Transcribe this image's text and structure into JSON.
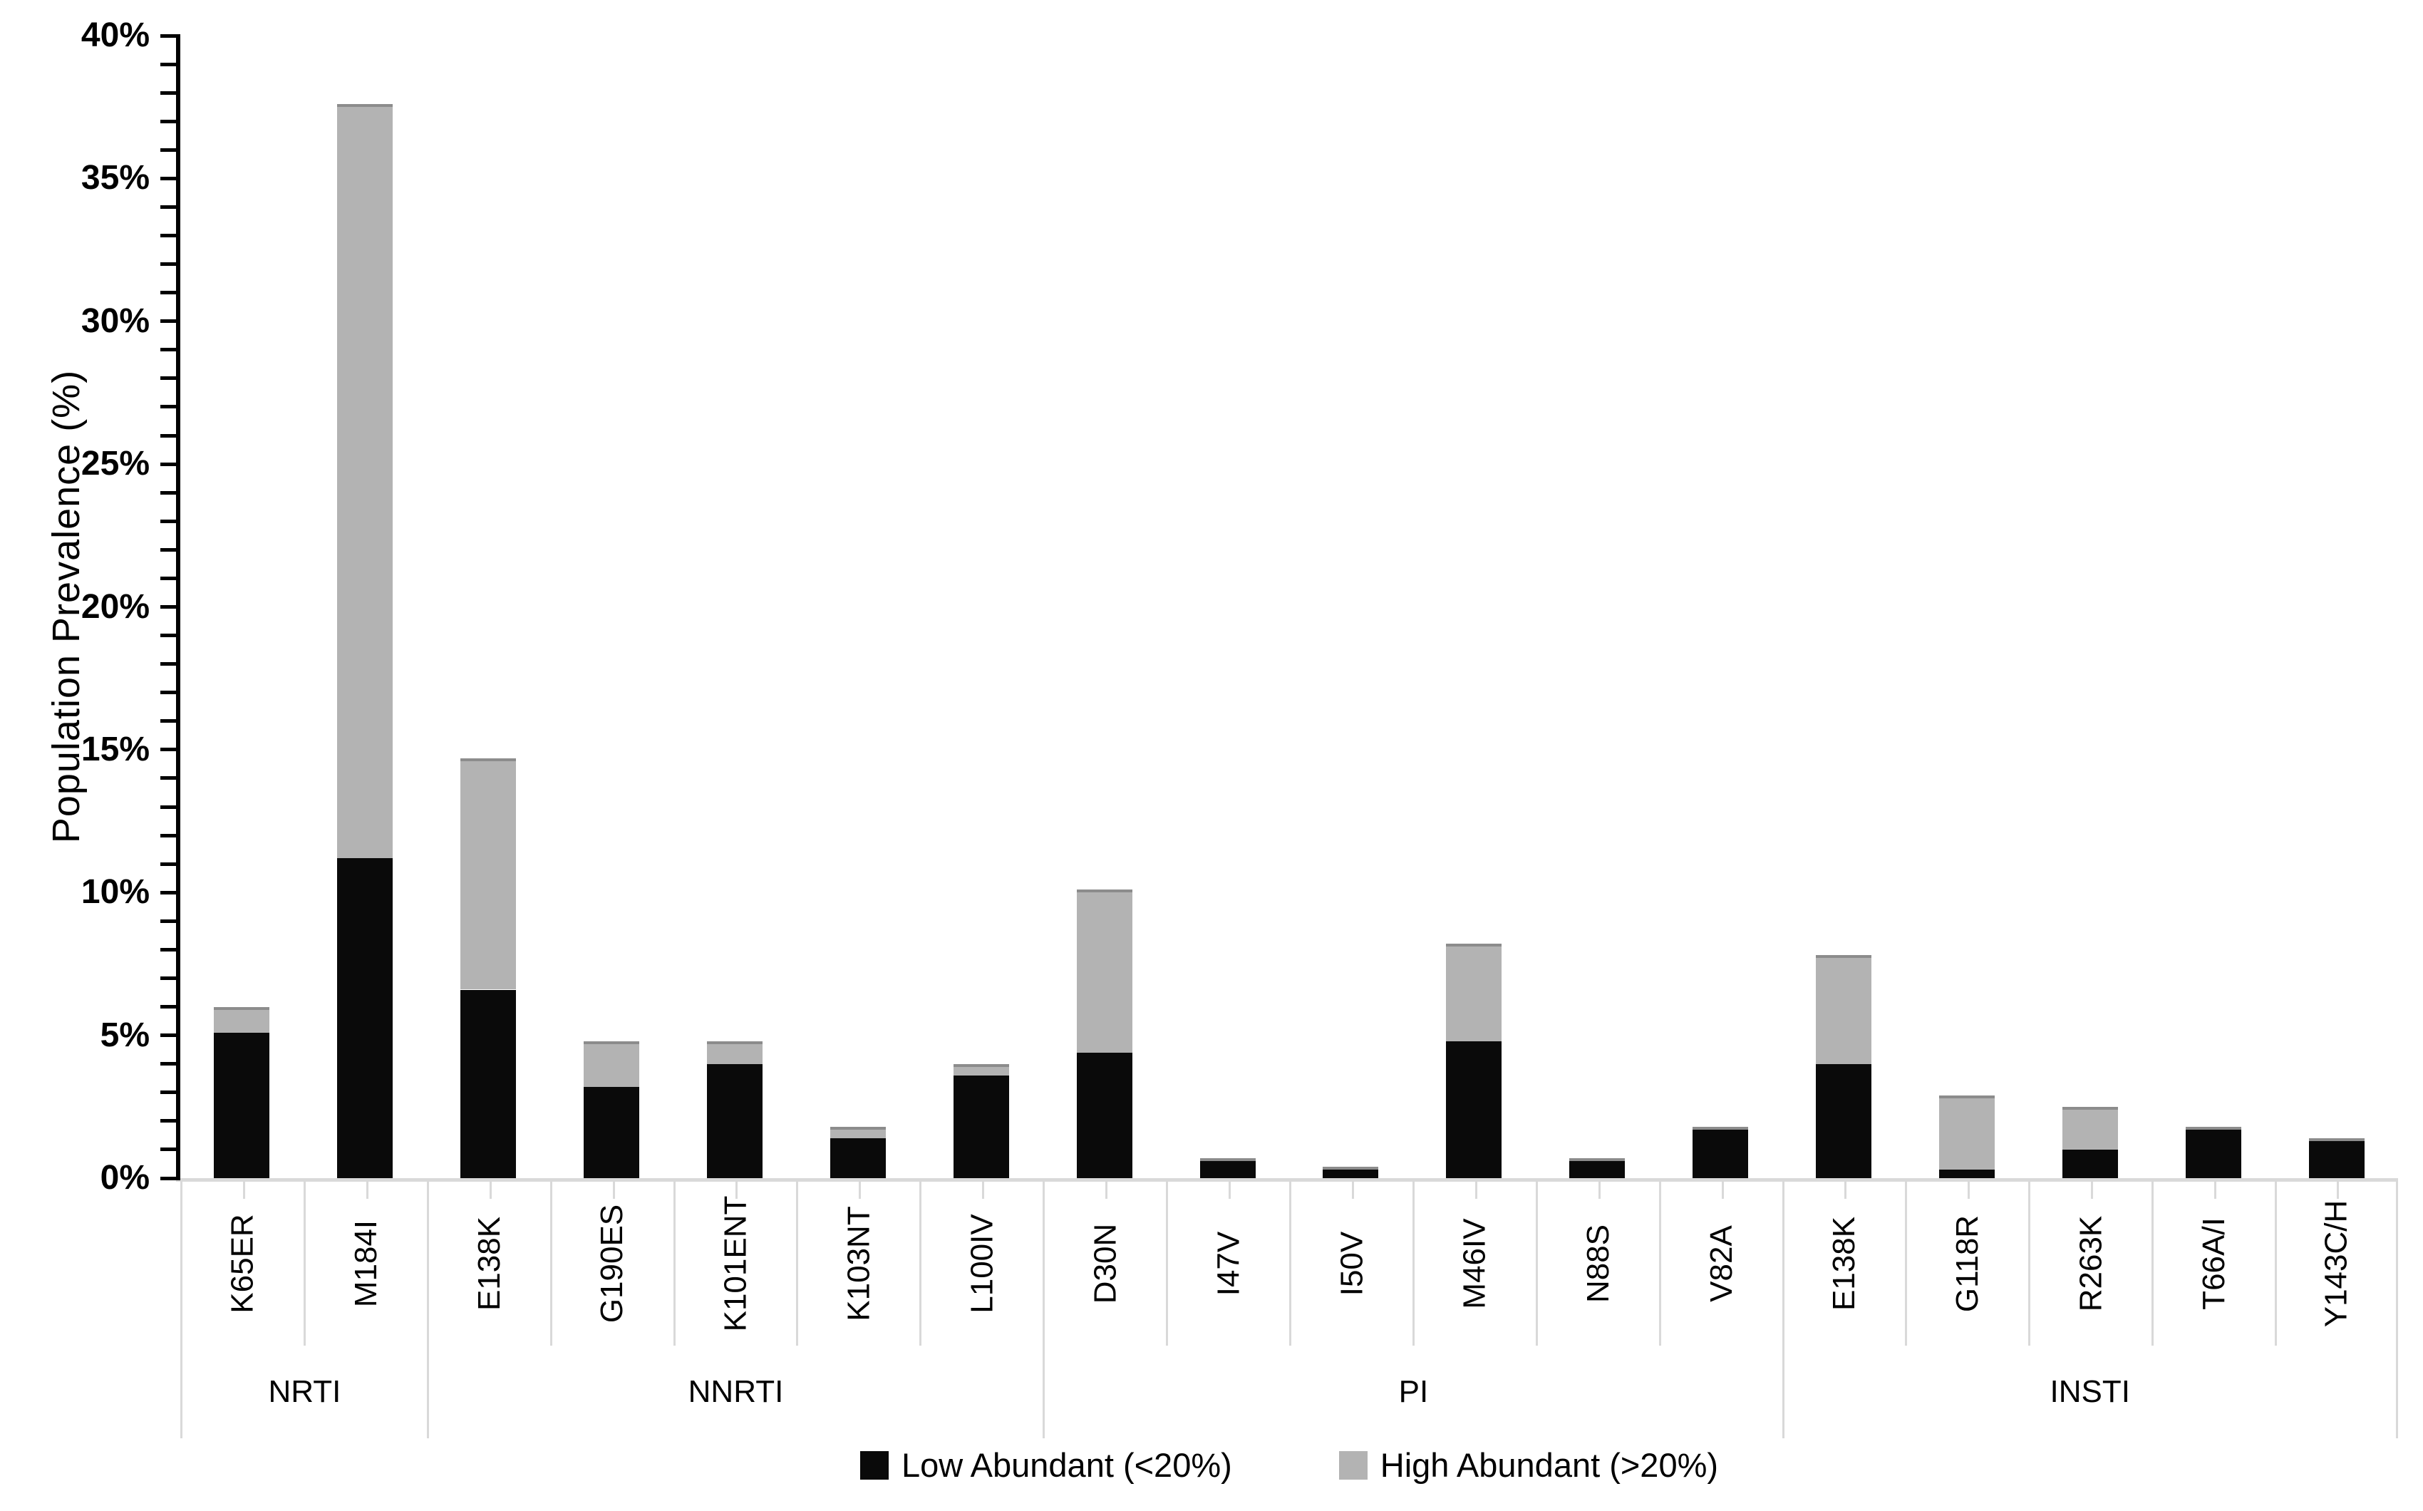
{
  "chart_data": {
    "type": "bar",
    "stacked": true,
    "title": "",
    "xlabel": "",
    "ylabel": "Population Prevalence (%)",
    "ylim": [
      0,
      40
    ],
    "y_major_tick_step": 5,
    "y_minor_tick_step": 1,
    "y_tick_labels": [
      "0%",
      "5%",
      "10%",
      "15%",
      "20%",
      "25%",
      "30%",
      "35%",
      "40%"
    ],
    "grid": false,
    "legend_position": "bottom-center",
    "categories": [
      "K65ER",
      "M184I",
      "E138K",
      "G190ES",
      "K101ENT",
      "K103NT",
      "L100IV",
      "D30N",
      "I47V",
      "I50V",
      "M46IV",
      "N88S",
      "V82A",
      "E138K",
      "G118R",
      "R263K",
      "T66A/I",
      "Y143C/H"
    ],
    "groups": [
      {
        "label": "NRTI",
        "span": 2
      },
      {
        "label": "NNRTI",
        "span": 5
      },
      {
        "label": "PI",
        "span": 6
      },
      {
        "label": "INSTI",
        "span": 5
      }
    ],
    "series": [
      {
        "name": "Low Abundant (<20%)",
        "color": "#0a0a0a",
        "values": [
          5.1,
          11.2,
          6.6,
          3.2,
          4.0,
          1.4,
          3.6,
          4.4,
          0.7,
          0.4,
          4.8,
          0.7,
          1.8,
          4.0,
          0.3,
          1.0,
          1.8,
          1.4
        ]
      },
      {
        "name": "High Abundant (>20%)",
        "color": "#b3b3b3",
        "values": [
          0.9,
          26.4,
          8.1,
          1.6,
          0.8,
          0.4,
          0.4,
          5.7,
          0.0,
          0.0,
          3.4,
          0.0,
          0.0,
          3.8,
          2.6,
          1.5,
          0.0,
          0.0
        ]
      }
    ],
    "colors": {
      "axis": "#000000",
      "separator": "#d9d9d9",
      "segment_cap": "#8c8c8c"
    }
  }
}
